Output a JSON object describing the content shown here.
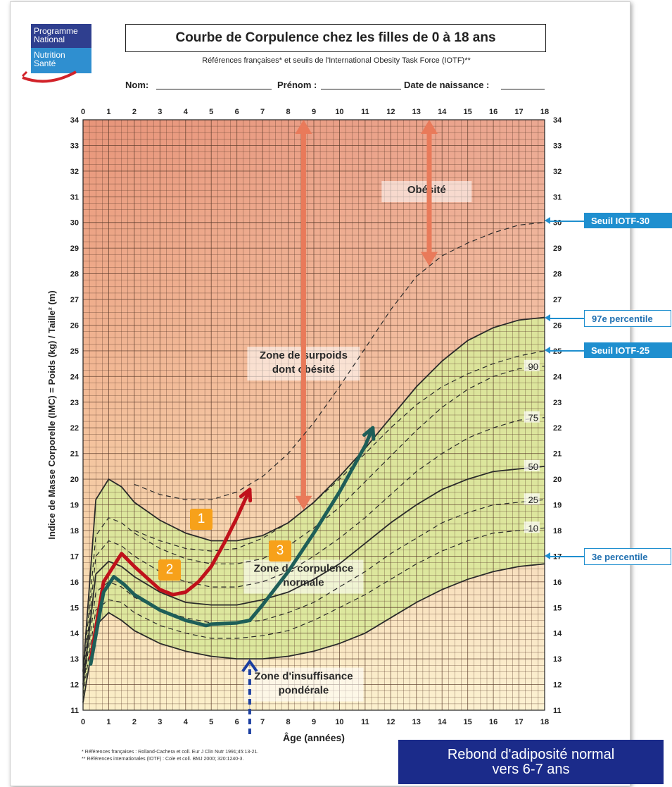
{
  "logo": {
    "line1": "Programme",
    "line2": "National",
    "line3": "Nutrition",
    "line4": "Santé"
  },
  "header": {
    "title": "Courbe de Corpulence chez les filles de 0 à 18 ans",
    "subtitle": "Références françaises* et seuils de l'International Obesity Task Force (IOTF)**",
    "nom_label": "Nom:",
    "prenom_label": "Prénom :",
    "naissance_label": "Date de naissance :"
  },
  "zones": {
    "obesite": "Obésité",
    "surpoids_1": "Zone de surpoids",
    "surpoids_2": "dont obésité",
    "normale_1": "Zone de corpulence",
    "normale_2": "normale",
    "insuff_1": "Zone d'insuffisance",
    "insuff_2": "pondérale"
  },
  "callouts": {
    "iotf30": "Seuil IOTF-30",
    "p97": "97e percentile",
    "iotf25": "Seuil IOTF-25",
    "p3": "3e percentile"
  },
  "badges": {
    "b1": "1",
    "b2": "2",
    "b3": "3"
  },
  "footnotes": {
    "f1": "* Références françaises : Rolland-Cachera et coll. Eur J Clin Nutr 1991;45:13-21.",
    "f2": "** Références internationales (IOTF) : Cole et coll. BMJ 2000; 320:1240-3."
  },
  "banner": {
    "line1": "Rebond d'adiposité normal",
    "line2": "vers 6-7 ans"
  },
  "colors": {
    "accent_blue": "#1f8fcf",
    "banner": "#1b2b8a",
    "badge": "#f7a11a",
    "red_curve": "#c0111b",
    "green_curve": "#1e5e58",
    "normal_zone": "#d9e89a",
    "arrow": "#e97a5a"
  },
  "chart_data": {
    "type": "line",
    "xlabel": "Âge (années)",
    "ylabel": "Indice de Masse Corporelle (IMC) = Poids (kg) / Taille² (m)",
    "xlim": [
      0,
      18
    ],
    "ylim": [
      11,
      34
    ],
    "x_ticks": [
      0,
      1,
      2,
      3,
      4,
      5,
      6,
      7,
      8,
      9,
      10,
      11,
      12,
      13,
      14,
      15,
      16,
      17,
      18
    ],
    "y_ticks": [
      11,
      12,
      13,
      14,
      15,
      16,
      17,
      18,
      19,
      20,
      21,
      22,
      23,
      24,
      25,
      26,
      27,
      28,
      29,
      30,
      31,
      32,
      33,
      34
    ],
    "percentile_labels": [
      "90",
      "75",
      "50",
      "25",
      "10"
    ],
    "series": [
      {
        "name": "97e percentile",
        "style": "solid",
        "x": [
          0,
          0.5,
          1,
          1.5,
          2,
          3,
          4,
          5,
          6,
          7,
          8,
          9,
          10,
          11,
          12,
          13,
          14,
          15,
          16,
          17,
          18
        ],
        "y": [
          12.5,
          19.2,
          20.0,
          19.7,
          19.1,
          18.4,
          17.9,
          17.6,
          17.6,
          17.8,
          18.3,
          19.1,
          20.1,
          21.2,
          22.4,
          23.6,
          24.6,
          25.4,
          25.9,
          26.2,
          26.3
        ]
      },
      {
        "name": "Seuil IOTF-30",
        "style": "dashed",
        "x": [
          2,
          3,
          4,
          5,
          6,
          7,
          8,
          9,
          10,
          11,
          12,
          13,
          14,
          15,
          16,
          17,
          18
        ],
        "y": [
          19.8,
          19.4,
          19.2,
          19.2,
          19.5,
          20.1,
          21.0,
          22.2,
          23.6,
          25.1,
          26.6,
          27.9,
          28.7,
          29.2,
          29.6,
          29.9,
          30.0
        ]
      },
      {
        "name": "Seuil IOTF-25",
        "style": "dashed",
        "x": [
          2,
          3,
          4,
          5,
          6,
          7,
          8,
          9,
          10,
          11,
          12,
          13,
          14,
          15,
          16,
          17,
          18
        ],
        "y": [
          18.0,
          17.6,
          17.3,
          17.2,
          17.3,
          17.7,
          18.3,
          19.1,
          20.0,
          21.0,
          22.0,
          22.9,
          23.6,
          24.1,
          24.5,
          24.8,
          25.0
        ]
      },
      {
        "name": "90",
        "style": "dashed",
        "x": [
          0,
          0.5,
          1,
          1.5,
          2,
          3,
          4,
          5,
          6,
          7,
          8,
          9,
          10,
          11,
          12,
          13,
          14,
          15,
          16,
          17,
          18
        ],
        "y": [
          12.3,
          17.8,
          18.5,
          18.3,
          17.9,
          17.3,
          16.9,
          16.7,
          16.7,
          16.9,
          17.4,
          18.1,
          18.9,
          19.9,
          20.9,
          21.9,
          22.8,
          23.5,
          24.0,
          24.3,
          24.4
        ]
      },
      {
        "name": "75",
        "style": "dashed",
        "x": [
          0,
          0.5,
          1,
          1.5,
          2,
          3,
          4,
          5,
          6,
          7,
          8,
          9,
          10,
          11,
          12,
          13,
          14,
          15,
          16,
          17,
          18
        ],
        "y": [
          12.1,
          17.0,
          17.6,
          17.4,
          17.0,
          16.4,
          16.0,
          15.8,
          15.8,
          16.0,
          16.4,
          17.0,
          17.7,
          18.5,
          19.4,
          20.3,
          21.0,
          21.6,
          22.0,
          22.3,
          22.4
        ]
      },
      {
        "name": "50",
        "style": "solid",
        "x": [
          0,
          0.5,
          1,
          1.5,
          2,
          3,
          4,
          5,
          6,
          7,
          8,
          9,
          10,
          11,
          12,
          13,
          14,
          15,
          16,
          17,
          18
        ],
        "y": [
          12.0,
          16.3,
          16.8,
          16.6,
          16.2,
          15.6,
          15.2,
          15.1,
          15.1,
          15.3,
          15.6,
          16.1,
          16.7,
          17.5,
          18.3,
          19.0,
          19.6,
          20.0,
          20.3,
          20.4,
          20.5
        ]
      },
      {
        "name": "25",
        "style": "dashed",
        "x": [
          0,
          0.5,
          1,
          1.5,
          2,
          3,
          4,
          5,
          6,
          7,
          8,
          9,
          10,
          11,
          12,
          13,
          14,
          15,
          16,
          17,
          18
        ],
        "y": [
          11.8,
          15.6,
          16.0,
          15.8,
          15.4,
          14.9,
          14.6,
          14.4,
          14.4,
          14.5,
          14.8,
          15.2,
          15.8,
          16.4,
          17.1,
          17.7,
          18.3,
          18.7,
          19.0,
          19.1,
          19.2
        ]
      },
      {
        "name": "10",
        "style": "dashed",
        "x": [
          0,
          0.5,
          1,
          1.5,
          2,
          3,
          4,
          5,
          6,
          7,
          8,
          9,
          10,
          11,
          12,
          13,
          14,
          15,
          16,
          17,
          18
        ],
        "y": [
          11.6,
          14.9,
          15.3,
          15.2,
          14.8,
          14.3,
          14.0,
          13.8,
          13.8,
          13.9,
          14.1,
          14.5,
          15.0,
          15.5,
          16.1,
          16.7,
          17.2,
          17.6,
          17.9,
          18.0,
          18.1
        ]
      },
      {
        "name": "3e percentile",
        "style": "solid",
        "x": [
          0,
          0.5,
          1,
          1.5,
          2,
          3,
          4,
          5,
          6,
          7,
          8,
          9,
          10,
          11,
          12,
          13,
          14,
          15,
          16,
          17,
          18
        ],
        "y": [
          11.3,
          14.3,
          14.8,
          14.5,
          14.1,
          13.6,
          13.3,
          13.1,
          13.0,
          13.0,
          13.1,
          13.3,
          13.6,
          14.0,
          14.6,
          15.2,
          15.7,
          16.1,
          16.4,
          16.6,
          16.7
        ]
      },
      {
        "name": "1",
        "style": "red",
        "x": [
          0.3,
          0.8,
          1.5,
          2,
          3,
          3.5,
          4,
          4.5,
          5,
          5.5,
          6,
          6.5
        ],
        "y": [
          13.0,
          16.0,
          17.1,
          16.6,
          15.7,
          15.5,
          15.6,
          16.0,
          16.6,
          17.5,
          18.5,
          19.6
        ]
      },
      {
        "name": "3",
        "style": "green",
        "x": [
          0.3,
          0.8,
          1.2,
          1.6,
          2,
          3,
          4,
          4.8,
          5,
          6,
          6.5,
          7,
          8,
          9,
          10,
          11,
          11.3
        ],
        "y": [
          12.8,
          15.6,
          16.2,
          15.9,
          15.5,
          14.9,
          14.5,
          14.3,
          14.35,
          14.4,
          14.5,
          15.1,
          16.4,
          17.9,
          19.5,
          21.3,
          22.0
        ]
      }
    ]
  }
}
